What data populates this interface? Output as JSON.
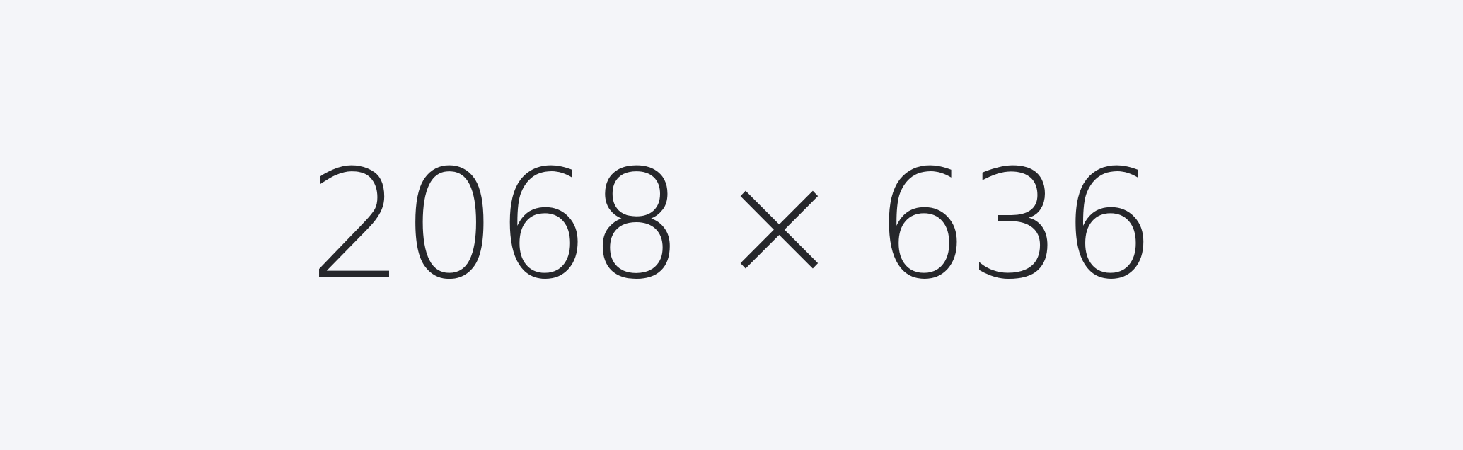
{
  "display": {
    "width_text": "2068",
    "separator": "×",
    "height_text": "636"
  },
  "colors": {
    "background": "#f4f5f9",
    "text": "#26272b"
  }
}
